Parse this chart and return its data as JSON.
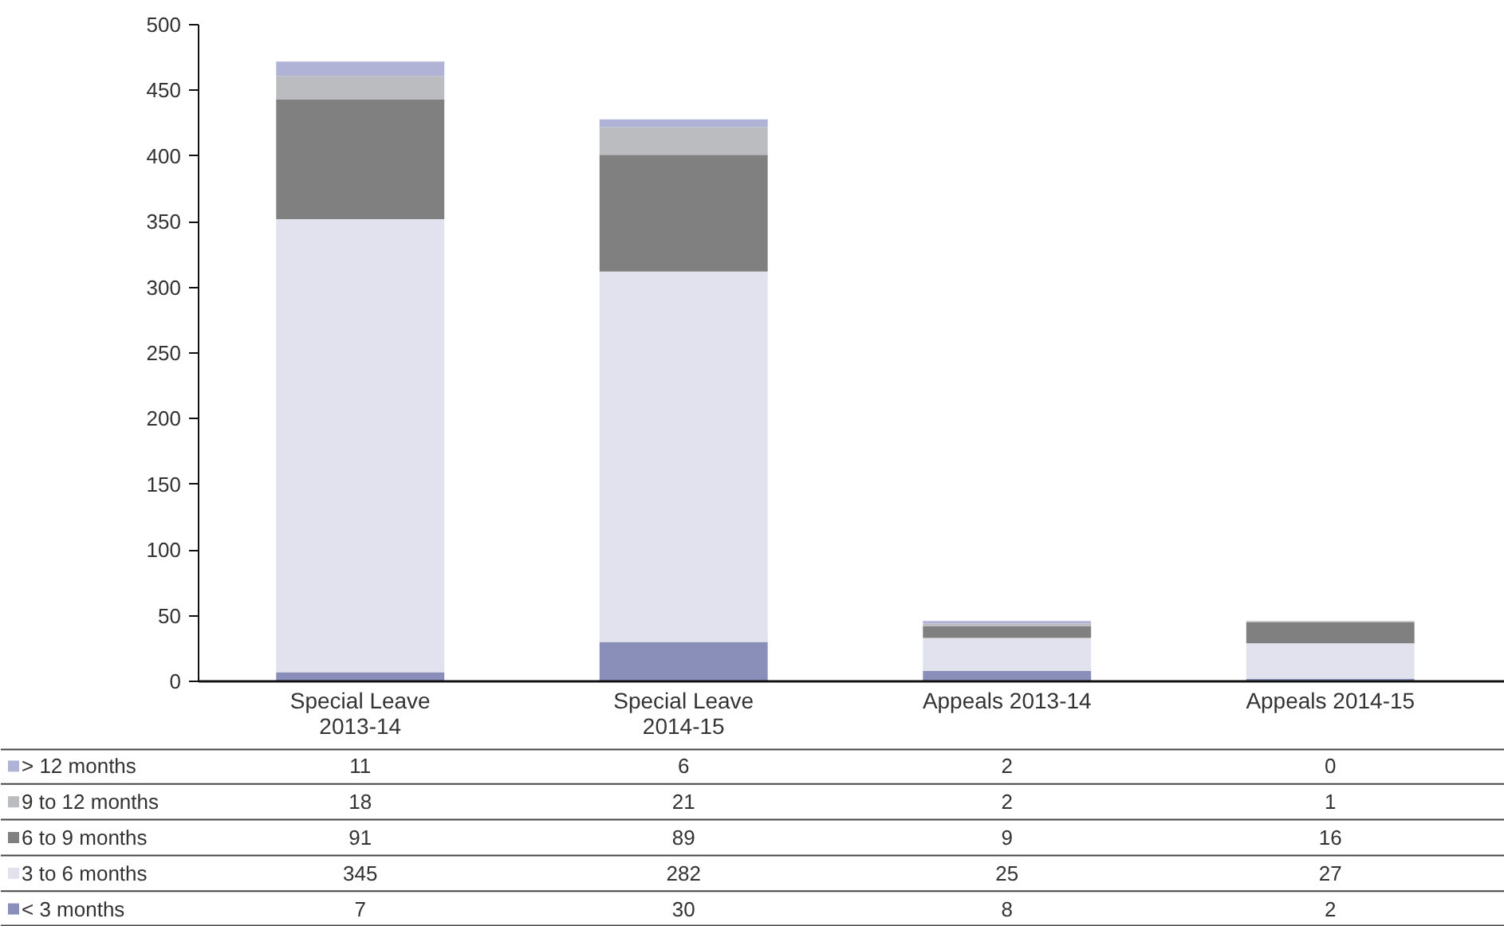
{
  "chart_data": {
    "type": "bar",
    "stacked": true,
    "categories": [
      "Special Leave 2013-14",
      "Special Leave 2014-15",
      "Appeals 2013-14",
      "Appeals 2014-15"
    ],
    "series": [
      {
        "name": "< 3 months",
        "color": "#8a8fba",
        "values": [
          7,
          30,
          8,
          2
        ]
      },
      {
        "name": "3 to 6 months",
        "color": "#e2e2ee",
        "values": [
          345,
          282,
          25,
          27
        ]
      },
      {
        "name": "6 to 9 months",
        "color": "#808080",
        "values": [
          91,
          89,
          9,
          16
        ]
      },
      {
        "name": "9 to 12 months",
        "color": "#bbbcc0",
        "values": [
          18,
          21,
          2,
          1
        ]
      },
      {
        "name": "> 12 months",
        "color": "#b0b3d6",
        "values": [
          11,
          6,
          2,
          0
        ]
      }
    ],
    "ylim": [
      0,
      500
    ],
    "yticks": [
      0,
      50,
      100,
      150,
      200,
      250,
      300,
      350,
      400,
      450,
      500
    ],
    "grid": false,
    "legend": "bottom",
    "data_labels": true
  }
}
